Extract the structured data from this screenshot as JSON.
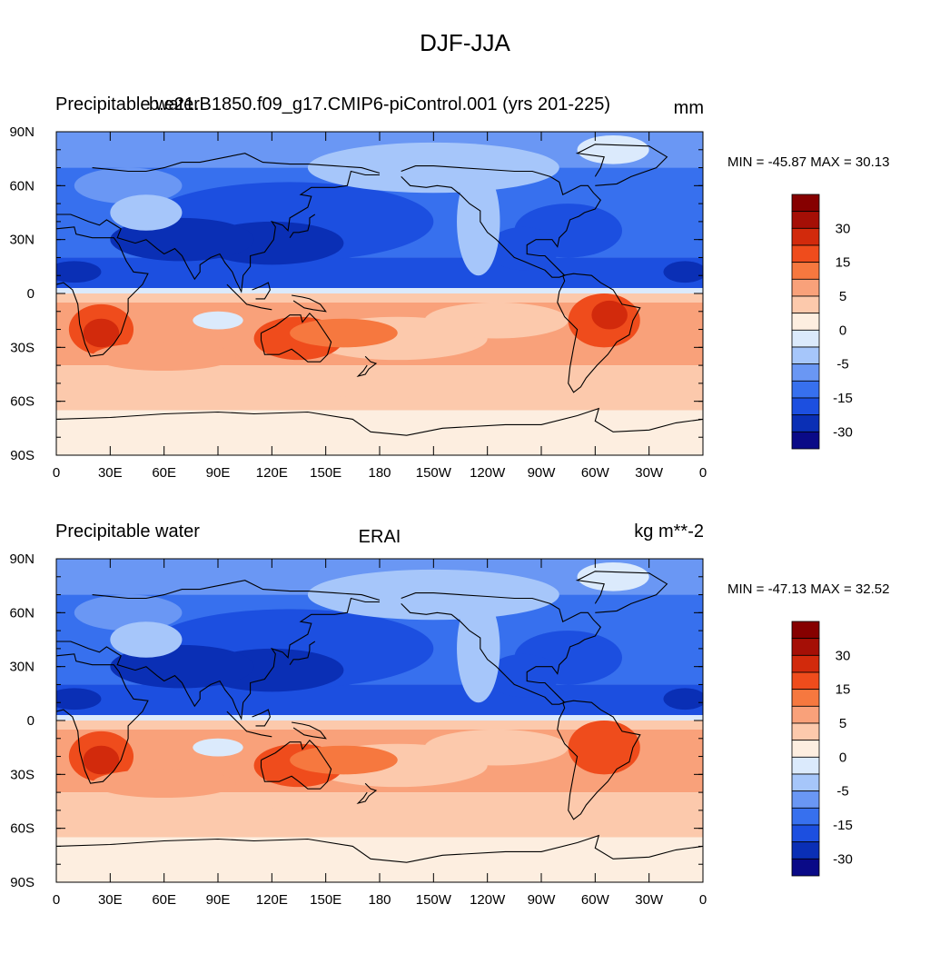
{
  "figure_title": "DJF-JJA",
  "colors": {
    "levels": [
      "#0a0a87",
      "#0a2fb5",
      "#1c4fe0",
      "#3770ee",
      "#6a97f4",
      "#a6c6fa",
      "#dbeafc",
      "#fdeee0",
      "#fcc9ac",
      "#f9a17a",
      "#f6783f",
      "#ef4c1c",
      "#d22a0c",
      "#a50f06",
      "#860000"
    ],
    "coastline": "#000000"
  },
  "panels": [
    {
      "left_label": "Precipitable water",
      "center_label": "b.e21.B1850.f09_g17.CMIP6-piControl.001 (yrs 201-225)",
      "units": "mm",
      "min_max_text": "MIN = -45.87 MAX =  30.13",
      "colorbar_labels": [
        "30",
        "15",
        "5",
        "0",
        "-5",
        "-15",
        "-30"
      ]
    },
    {
      "left_label": "Precipitable water",
      "center_label": "ERAI",
      "units": "kg m**-2",
      "min_max_text": "MIN = -47.13 MAX =  32.52",
      "colorbar_labels": [
        "30",
        "15",
        "5",
        "0",
        "-5",
        "-15",
        "-30"
      ]
    }
  ],
  "axes": {
    "lat_labels": [
      "90N",
      "60N",
      "30N",
      "0",
      "30S",
      "60S",
      "90S"
    ],
    "lon_labels": [
      "0",
      "30E",
      "60E",
      "90E",
      "120E",
      "150E",
      "180",
      "150W",
      "120W",
      "90W",
      "60W",
      "30W",
      "0"
    ]
  }
}
